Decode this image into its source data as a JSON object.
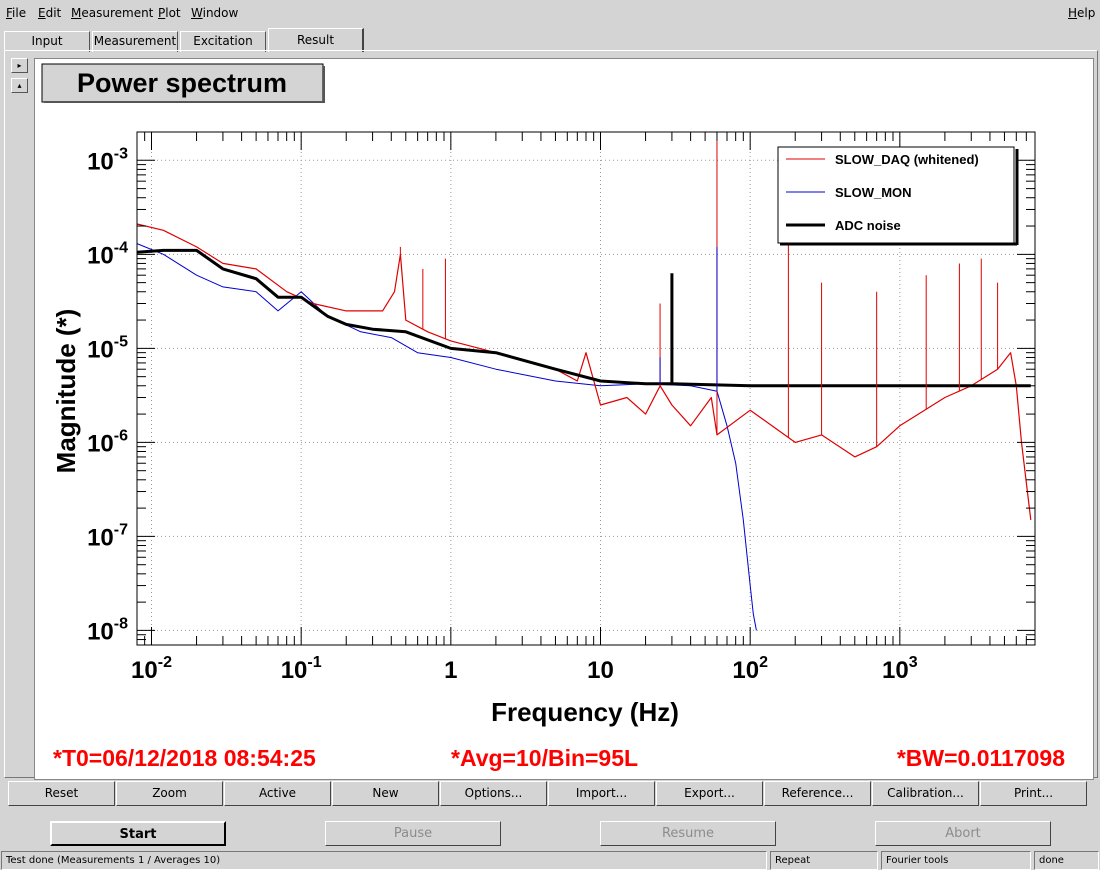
{
  "menu": {
    "items": [
      {
        "ul": "F",
        "rest": "ile"
      },
      {
        "ul": "E",
        "rest": "dit"
      },
      {
        "ul": "M",
        "rest": "easurement"
      },
      {
        "ul": "P",
        "rest": "lot"
      },
      {
        "ul": "W",
        "rest": "indow"
      }
    ],
    "help": {
      "ul": "H",
      "rest": "elp"
    }
  },
  "tabs": [
    "Input",
    "Measurement",
    "Excitation",
    "Result"
  ],
  "active_tab": "Result",
  "panel_arrows": [
    "▸",
    "▴"
  ],
  "plot": {
    "title": "Power spectrum",
    "footer_t0": "*T0=06/12/2018 08:54:25",
    "footer_avg": "*Avg=10/Bin=95L",
    "footer_bw": "*BW=0.0117098"
  },
  "chart_data": {
    "type": "line",
    "title": "Power spectrum",
    "xlabel": "Frequency (Hz)",
    "ylabel": "Magnitude (*)",
    "xscale": "log",
    "yscale": "log",
    "xlim": [
      0.008,
      8000
    ],
    "ylim": [
      7e-09,
      0.002
    ],
    "x_ticks": [
      {
        "v": 0.01,
        "base": "10",
        "exp": "-2"
      },
      {
        "v": 0.1,
        "base": "10",
        "exp": "-1"
      },
      {
        "v": 1,
        "base": "1",
        "exp": ""
      },
      {
        "v": 10,
        "base": "10",
        "exp": ""
      },
      {
        "v": 100,
        "base": "10",
        "exp": "2"
      },
      {
        "v": 1000,
        "base": "10",
        "exp": "3"
      }
    ],
    "y_ticks": [
      {
        "v": 0.001,
        "base": "10",
        "exp": "-3"
      },
      {
        "v": 0.0001,
        "base": "10",
        "exp": "-4"
      },
      {
        "v": 1e-05,
        "base": "10",
        "exp": "-5"
      },
      {
        "v": 1e-06,
        "base": "10",
        "exp": "-6"
      },
      {
        "v": 1e-07,
        "base": "10",
        "exp": "-7"
      },
      {
        "v": 1e-08,
        "base": "10",
        "exp": "-8"
      }
    ],
    "grid": true,
    "legend_position": "top-right",
    "series": [
      {
        "name": "SLOW_DAQ (whitened)",
        "color": "#e00000",
        "points": [
          [
            0.008,
            0.00021
          ],
          [
            0.012,
            0.00018
          ],
          [
            0.02,
            0.00012
          ],
          [
            0.03,
            8e-05
          ],
          [
            0.05,
            7e-05
          ],
          [
            0.08,
            4e-05
          ],
          [
            0.12,
            3e-05
          ],
          [
            0.2,
            2.5e-05
          ],
          [
            0.35,
            2.5e-05
          ],
          [
            0.42,
            4e-05
          ],
          [
            0.46,
            0.0001
          ],
          [
            0.5,
            2e-05
          ],
          [
            0.7,
            1.5e-05
          ],
          [
            1,
            1.2e-05
          ],
          [
            2,
            9e-06
          ],
          [
            5,
            6e-06
          ],
          [
            7,
            4.5e-06
          ],
          [
            8,
            9e-06
          ],
          [
            10,
            2.5e-06
          ],
          [
            15,
            3e-06
          ],
          [
            20,
            2e-06
          ],
          [
            25,
            4e-06
          ],
          [
            30,
            2.5e-06
          ],
          [
            40,
            1.5e-06
          ],
          [
            55,
            3e-06
          ],
          [
            60,
            1.2e-06
          ],
          [
            100,
            2.2e-06
          ],
          [
            200,
            1e-06
          ],
          [
            300,
            1.2e-06
          ],
          [
            500,
            7e-07
          ],
          [
            700,
            9e-07
          ],
          [
            1000,
            1.5e-06
          ],
          [
            2000,
            3e-06
          ],
          [
            3000,
            4e-06
          ],
          [
            4500,
            6e-06
          ],
          [
            5500,
            9e-06
          ],
          [
            6000,
            4e-06
          ],
          [
            6500,
            1e-06
          ],
          [
            7500,
            1.5e-07
          ]
        ]
      },
      {
        "name": "SLOW_MON",
        "color": "#0000d0",
        "points": [
          [
            0.008,
            0.00013
          ],
          [
            0.012,
            0.0001
          ],
          [
            0.02,
            6e-05
          ],
          [
            0.03,
            4.5e-05
          ],
          [
            0.05,
            4e-05
          ],
          [
            0.07,
            2.5e-05
          ],
          [
            0.1,
            4e-05
          ],
          [
            0.15,
            2.2e-05
          ],
          [
            0.25,
            1.5e-05
          ],
          [
            0.4,
            1.3e-05
          ],
          [
            0.6,
            9e-06
          ],
          [
            1,
            8e-06
          ],
          [
            2,
            6e-06
          ],
          [
            5,
            4.5e-06
          ],
          [
            10,
            4e-06
          ],
          [
            20,
            4.2e-06
          ],
          [
            40,
            4e-06
          ],
          [
            60,
            3.5e-06
          ],
          [
            70,
            1.5e-06
          ],
          [
            80,
            6e-07
          ],
          [
            90,
            1.5e-07
          ],
          [
            100,
            3e-08
          ],
          [
            105,
            1.5e-08
          ],
          [
            110,
            1e-08
          ]
        ]
      },
      {
        "name": "ADC noise",
        "color": "#000000",
        "points": [
          [
            0.008,
            0.000105
          ],
          [
            0.012,
            0.00011
          ],
          [
            0.02,
            0.00011
          ],
          [
            0.03,
            7e-05
          ],
          [
            0.05,
            5.5e-05
          ],
          [
            0.07,
            3.5e-05
          ],
          [
            0.1,
            3.5e-05
          ],
          [
            0.15,
            2.2e-05
          ],
          [
            0.2,
            1.8e-05
          ],
          [
            0.3,
            1.6e-05
          ],
          [
            0.5,
            1.5e-05
          ],
          [
            1,
            1e-05
          ],
          [
            2,
            9e-06
          ],
          [
            5,
            6e-06
          ],
          [
            10,
            4.5e-06
          ],
          [
            20,
            4.2e-06
          ],
          [
            30,
            4.2e-06
          ],
          [
            100,
            4e-06
          ],
          [
            300,
            4e-06
          ],
          [
            1000,
            4e-06
          ],
          [
            3000,
            4e-06
          ],
          [
            7500,
            4e-06
          ]
        ]
      }
    ],
    "spikes": [
      {
        "series": "SLOW_DAQ (whitened)",
        "x": 0.46,
        "y": 0.00012
      },
      {
        "series": "SLOW_DAQ (whitened)",
        "x": 0.65,
        "y": 7e-05
      },
      {
        "series": "SLOW_DAQ (whitened)",
        "x": 0.92,
        "y": 9e-05
      },
      {
        "series": "SLOW_DAQ (whitened)",
        "x": 8,
        "y": 9e-06
      },
      {
        "series": "SLOW_DAQ (whitened)",
        "x": 25,
        "y": 3e-05
      },
      {
        "series": "SLOW_DAQ (whitened)",
        "x": 60,
        "y": 0.0016
      },
      {
        "series": "SLOW_DAQ (whitened)",
        "x": 180,
        "y": 0.00013
      },
      {
        "series": "SLOW_DAQ (whitened)",
        "x": 300,
        "y": 5e-05
      },
      {
        "series": "SLOW_DAQ (whitened)",
        "x": 700,
        "y": 4e-05
      },
      {
        "series": "SLOW_DAQ (whitened)",
        "x": 1500,
        "y": 6e-05
      },
      {
        "series": "SLOW_DAQ (whitened)",
        "x": 2500,
        "y": 8e-05
      },
      {
        "series": "SLOW_DAQ (whitened)",
        "x": 3500,
        "y": 9e-05
      },
      {
        "series": "SLOW_DAQ (whitened)",
        "x": 4500,
        "y": 5e-05
      },
      {
        "series": "SLOW_MON",
        "x": 60,
        "y": 0.00012
      },
      {
        "series": "SLOW_MON",
        "x": 25,
        "y": 8e-06
      },
      {
        "series": "ADC noise",
        "x": 30,
        "y": 6.3e-05
      }
    ]
  },
  "buttons": [
    "Reset",
    "Zoom",
    "Active",
    "New",
    "Options...",
    "Import...",
    "Export...",
    "Reference...",
    "Calibration...",
    "Print..."
  ],
  "controls": [
    {
      "label": "Start",
      "state": "primary"
    },
    {
      "label": "Pause",
      "state": "disabled"
    },
    {
      "label": "Resume",
      "state": "disabled"
    },
    {
      "label": "Abort",
      "state": "disabled"
    }
  ],
  "status": {
    "message": "Test done (Measurements 1 / Averages 10)",
    "mode": "Repeat",
    "tool": "Fourier tools",
    "state": "done"
  }
}
